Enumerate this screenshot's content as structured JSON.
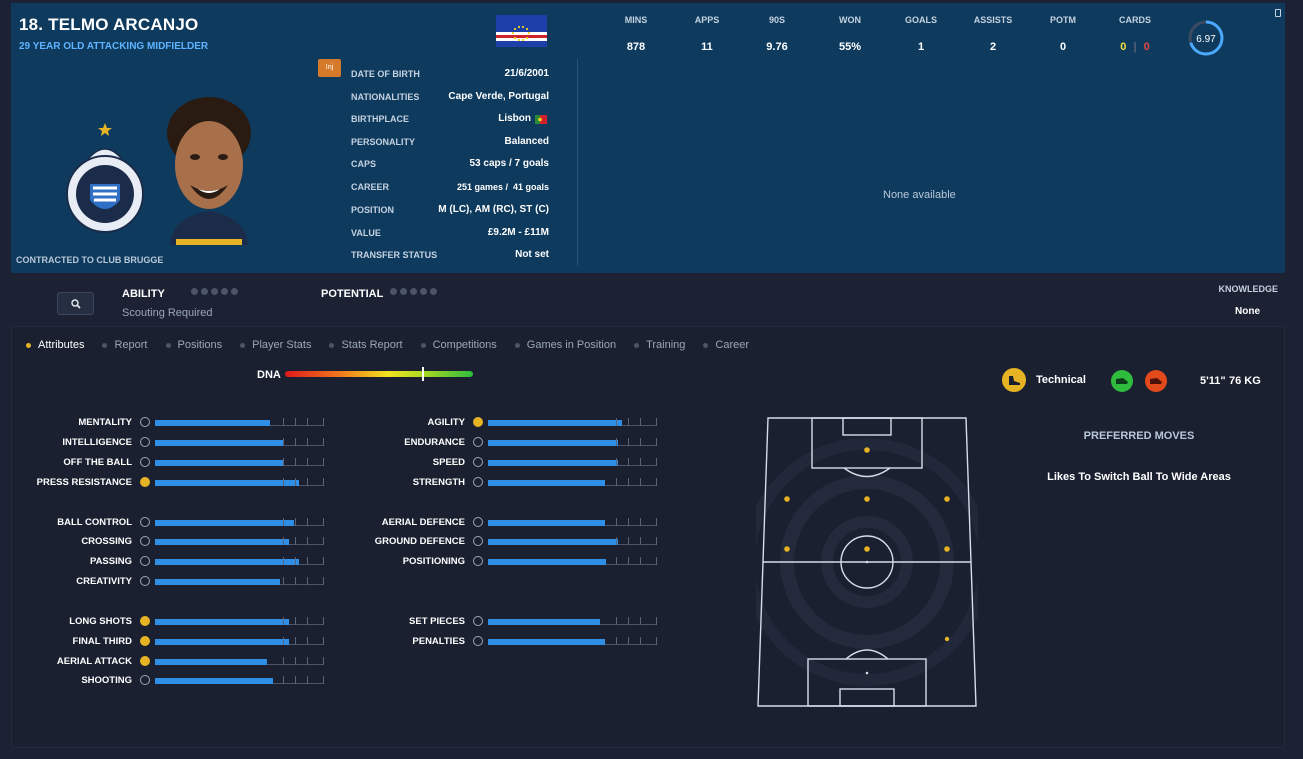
{
  "player": {
    "name": "18. TELMO ARCANJO",
    "subtitle": "29 YEAR OLD ATTACKING MIDFIELDER",
    "contract": "CONTRACTED TO CLUB BRUGGE",
    "injury_badge": "Inj"
  },
  "info": [
    {
      "label": "DATE OF BIRTH",
      "value": "21/6/2001"
    },
    {
      "label": "NATIONALITIES",
      "value": "Cape Verde, Portugal"
    },
    {
      "label": "BIRTHPLACE",
      "value": "Lisbon"
    },
    {
      "label": "PERSONALITY",
      "value": "Balanced"
    },
    {
      "label": "CAPS",
      "value": "53 caps / 7 goals"
    },
    {
      "label": "CAREER",
      "value": "251 games /  41 goals"
    },
    {
      "label": "POSITION",
      "value": "M (LC), AM (RC), ST (C)"
    },
    {
      "label": "VALUE",
      "value": "£9.2M - £11M"
    },
    {
      "label": "TRANSFER STATUS",
      "value": "Not set"
    }
  ],
  "stats": {
    "headers": [
      "MINS",
      "APPS",
      "90S",
      "WON",
      "GOALS",
      "ASSISTS",
      "POTM",
      "CARDS"
    ],
    "values": [
      "878",
      "11",
      "9.76",
      "55%",
      "1",
      "2",
      "0"
    ],
    "cards_yellow": "0",
    "cards_sep": "|",
    "cards_red": "0",
    "rating": "6.97",
    "rating_fraction": 0.7
  },
  "history_empty": "None available",
  "ability": {
    "ability_label": "ABILITY",
    "scouting": "Scouting Required",
    "potential_label": "POTENTIAL",
    "knowledge_label": "KNOWLEDGE",
    "knowledge_value": "None"
  },
  "tabs": [
    "Attributes",
    "Report",
    "Positions",
    "Player Stats",
    "Stats Report",
    "Competitions",
    "Games in Position",
    "Training",
    "Career"
  ],
  "dna": {
    "label": "DNA",
    "marker": 0.73
  },
  "attributes_left": [
    {
      "name": "MENTALITY",
      "value": 0.68,
      "good": false
    },
    {
      "name": "INTELLIGENCE",
      "value": 0.76,
      "good": false
    },
    {
      "name": "OFF THE BALL",
      "value": 0.76,
      "good": false
    },
    {
      "name": "PRESS RESISTANCE",
      "value": 0.85,
      "good": true
    },
    {
      "name": "BALL CONTROL",
      "value": 0.82,
      "good": false
    },
    {
      "name": "CROSSING",
      "value": 0.79,
      "good": false
    },
    {
      "name": "PASSING",
      "value": 0.85,
      "good": false
    },
    {
      "name": "CREATIVITY",
      "value": 0.74,
      "good": false
    },
    {
      "name": "LONG SHOTS",
      "value": 0.79,
      "good": true
    },
    {
      "name": "FINAL THIRD",
      "value": 0.79,
      "good": true
    },
    {
      "name": "AERIAL ATTACK",
      "value": 0.66,
      "good": true
    },
    {
      "name": "SHOOTING",
      "value": 0.7,
      "good": false
    }
  ],
  "attributes_right": [
    {
      "name": "AGILITY",
      "value": 0.79,
      "good": true
    },
    {
      "name": "ENDURANCE",
      "value": 0.77,
      "good": false
    },
    {
      "name": "SPEED",
      "value": 0.77,
      "good": false
    },
    {
      "name": "STRENGTH",
      "value": 0.69,
      "good": false
    },
    {
      "name": "AERIAL DEFENCE",
      "value": 0.69,
      "good": false
    },
    {
      "name": "GROUND DEFENCE",
      "value": 0.77,
      "good": false
    },
    {
      "name": "POSITIONING",
      "value": 0.7,
      "good": false
    },
    {
      "name": "SET PIECES",
      "value": 0.66,
      "good": false
    },
    {
      "name": "PENALTIES",
      "value": 0.69,
      "good": false
    }
  ],
  "profile": {
    "role": "Technical",
    "height": "5'11\"",
    "weight": "76 KG"
  },
  "preferred_moves": {
    "title": "PREFERRED MOVES",
    "items": [
      "Likes To Switch Ball To Wide Areas"
    ]
  },
  "colors": {
    "header_bg": "#0e3a5e",
    "accent_blue": "#2f8fe6",
    "gold": "#e6b325"
  }
}
